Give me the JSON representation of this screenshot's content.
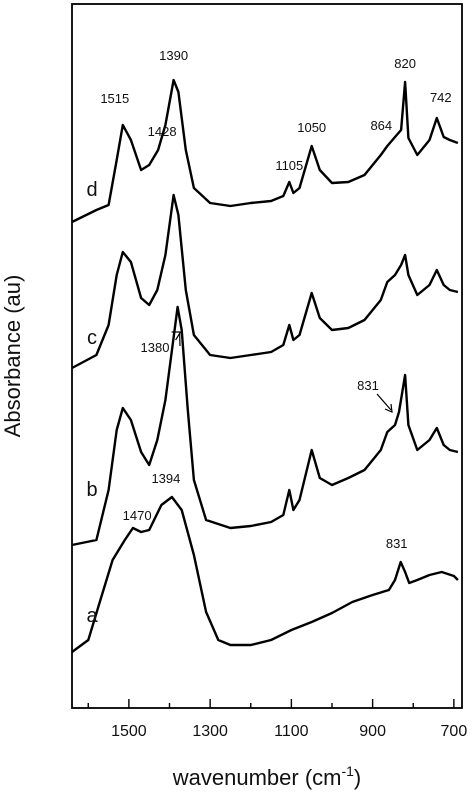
{
  "chart_data": {
    "type": "line",
    "title": "",
    "xlabel_main": "wavenumber ",
    "xlabel_unit": "(cm",
    "xlabel_sup": "-1",
    "xlabel_close": ")",
    "ylabel": "Absorbance (au)",
    "xlim": [
      1640,
      680
    ],
    "x_reversed": true,
    "x_major_ticks": [
      1500,
      1300,
      1100,
      900,
      700
    ],
    "x_minor_ticks": [
      1600,
      1400,
      1200,
      1000,
      800
    ],
    "y_ticks_shown": false,
    "grid": false,
    "series": [
      {
        "name": "d",
        "points": [
          [
            1640,
            222
          ],
          [
            1580,
            210
          ],
          [
            1550,
            205
          ],
          [
            1530,
            160
          ],
          [
            1515,
            125
          ],
          [
            1495,
            140
          ],
          [
            1470,
            170
          ],
          [
            1450,
            165
          ],
          [
            1428,
            150
          ],
          [
            1410,
            125
          ],
          [
            1390,
            80
          ],
          [
            1378,
            92
          ],
          [
            1360,
            150
          ],
          [
            1340,
            188
          ],
          [
            1300,
            203
          ],
          [
            1250,
            206
          ],
          [
            1200,
            203
          ],
          [
            1150,
            201
          ],
          [
            1120,
            196
          ],
          [
            1105,
            182
          ],
          [
            1095,
            193
          ],
          [
            1080,
            188
          ],
          [
            1050,
            146
          ],
          [
            1030,
            170
          ],
          [
            1000,
            183
          ],
          [
            960,
            182
          ],
          [
            920,
            175
          ],
          [
            880,
            155
          ],
          [
            864,
            146
          ],
          [
            845,
            137
          ],
          [
            830,
            130
          ],
          [
            820,
            82
          ],
          [
            812,
            138
          ],
          [
            790,
            155
          ],
          [
            760,
            140
          ],
          [
            742,
            118
          ],
          [
            725,
            137
          ],
          [
            710,
            140
          ],
          [
            690,
            143
          ]
        ],
        "peaks": [
          {
            "label": "1515",
            "x": 1515
          },
          {
            "label": "1428",
            "x": 1428
          },
          {
            "label": "1390",
            "x": 1390
          },
          {
            "label": "1105",
            "x": 1105
          },
          {
            "label": "1050",
            "x": 1050
          },
          {
            "label": "864",
            "x": 864
          },
          {
            "label": "820",
            "x": 820
          },
          {
            "label": "742",
            "x": 742
          }
        ]
      },
      {
        "name": "c",
        "points": [
          [
            1640,
            368
          ],
          [
            1580,
            355
          ],
          [
            1550,
            325
          ],
          [
            1530,
            275
          ],
          [
            1515,
            252
          ],
          [
            1495,
            262
          ],
          [
            1470,
            298
          ],
          [
            1450,
            305
          ],
          [
            1430,
            290
          ],
          [
            1410,
            255
          ],
          [
            1390,
            195
          ],
          [
            1378,
            215
          ],
          [
            1360,
            290
          ],
          [
            1340,
            335
          ],
          [
            1300,
            355
          ],
          [
            1250,
            358
          ],
          [
            1200,
            355
          ],
          [
            1150,
            352
          ],
          [
            1120,
            345
          ],
          [
            1105,
            325
          ],
          [
            1095,
            340
          ],
          [
            1080,
            335
          ],
          [
            1050,
            293
          ],
          [
            1030,
            318
          ],
          [
            1000,
            330
          ],
          [
            960,
            328
          ],
          [
            920,
            320
          ],
          [
            880,
            300
          ],
          [
            864,
            282
          ],
          [
            845,
            275
          ],
          [
            830,
            265
          ],
          [
            820,
            255
          ],
          [
            812,
            275
          ],
          [
            790,
            295
          ],
          [
            760,
            285
          ],
          [
            742,
            270
          ],
          [
            725,
            285
          ],
          [
            710,
            290
          ],
          [
            690,
            292
          ]
        ],
        "peaks": [
          {
            "label": "1380",
            "x": 1380
          }
        ]
      },
      {
        "name": "b",
        "points": [
          [
            1640,
            545
          ],
          [
            1580,
            540
          ],
          [
            1550,
            490
          ],
          [
            1530,
            430
          ],
          [
            1515,
            408
          ],
          [
            1495,
            420
          ],
          [
            1470,
            452
          ],
          [
            1450,
            465
          ],
          [
            1430,
            440
          ],
          [
            1410,
            400
          ],
          [
            1380,
            307
          ],
          [
            1370,
            330
          ],
          [
            1355,
            410
          ],
          [
            1340,
            480
          ],
          [
            1310,
            520
          ],
          [
            1250,
            528
          ],
          [
            1200,
            526
          ],
          [
            1150,
            522
          ],
          [
            1120,
            515
          ],
          [
            1105,
            490
          ],
          [
            1095,
            510
          ],
          [
            1080,
            500
          ],
          [
            1050,
            450
          ],
          [
            1030,
            478
          ],
          [
            1000,
            485
          ],
          [
            960,
            478
          ],
          [
            920,
            470
          ],
          [
            880,
            450
          ],
          [
            864,
            432
          ],
          [
            845,
            425
          ],
          [
            835,
            412
          ],
          [
            820,
            375
          ],
          [
            812,
            425
          ],
          [
            790,
            450
          ],
          [
            760,
            440
          ],
          [
            742,
            428
          ],
          [
            725,
            445
          ],
          [
            710,
            450
          ],
          [
            690,
            452
          ]
        ],
        "peaks": [
          {
            "label": "831",
            "x": 831
          }
        ]
      },
      {
        "name": "a",
        "points": [
          [
            1640,
            652
          ],
          [
            1600,
            640
          ],
          [
            1570,
            600
          ],
          [
            1540,
            560
          ],
          [
            1510,
            540
          ],
          [
            1490,
            528
          ],
          [
            1470,
            532
          ],
          [
            1450,
            530
          ],
          [
            1420,
            505
          ],
          [
            1394,
            497
          ],
          [
            1370,
            510
          ],
          [
            1340,
            555
          ],
          [
            1310,
            612
          ],
          [
            1280,
            640
          ],
          [
            1250,
            645
          ],
          [
            1200,
            645
          ],
          [
            1150,
            640
          ],
          [
            1100,
            630
          ],
          [
            1050,
            622
          ],
          [
            1000,
            613
          ],
          [
            950,
            602
          ],
          [
            900,
            595
          ],
          [
            860,
            590
          ],
          [
            845,
            580
          ],
          [
            831,
            562
          ],
          [
            820,
            572
          ],
          [
            810,
            583
          ],
          [
            790,
            580
          ],
          [
            760,
            575
          ],
          [
            730,
            572
          ],
          [
            700,
            576
          ],
          [
            690,
            580
          ]
        ],
        "peaks": [
          {
            "label": "1470",
            "x": 1470
          },
          {
            "label": "1394",
            "x": 1394
          },
          {
            "label": "831",
            "x": 831
          }
        ]
      }
    ]
  }
}
